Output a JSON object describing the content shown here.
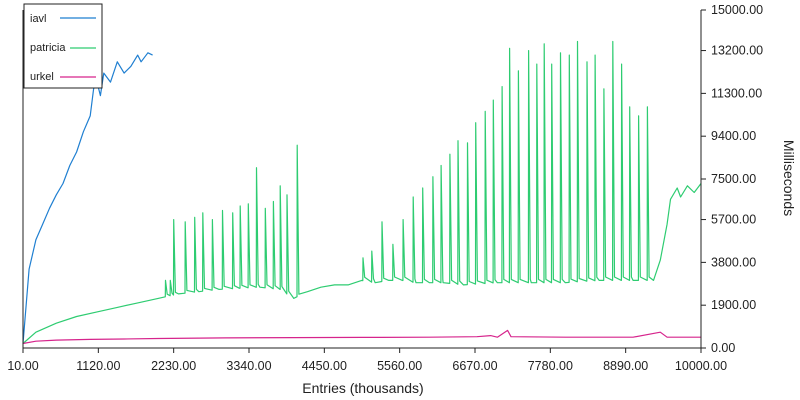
{
  "chart_data": {
    "type": "line",
    "xlabel": "Entries (thousands)",
    "ylabel": "Milliseconds",
    "xlim": [
      10,
      10000
    ],
    "ylim": [
      0,
      15000
    ],
    "x_ticks": [
      "10.00",
      "1120.00",
      "2230.00",
      "3340.00",
      "4450.00",
      "5560.00",
      "6670.00",
      "7780.00",
      "8890.00",
      "10000.00"
    ],
    "y_ticks": [
      "0.00",
      "1900.00",
      "3800.00",
      "5700.00",
      "7500.00",
      "9400.00",
      "11300.00",
      "13200.00",
      "15000.00"
    ],
    "legend_position": "top-left",
    "grid": false,
    "series": [
      {
        "name": "iavl",
        "color": "#1f7fd1",
        "points": [
          [
            10,
            200
          ],
          [
            100,
            3500
          ],
          [
            200,
            4800
          ],
          [
            300,
            5500
          ],
          [
            400,
            6200
          ],
          [
            500,
            6800
          ],
          [
            600,
            7300
          ],
          [
            700,
            8100
          ],
          [
            800,
            8700
          ],
          [
            900,
            9600
          ],
          [
            1000,
            10300
          ],
          [
            1050,
            11500
          ],
          [
            1100,
            11800
          ],
          [
            1150,
            11200
          ],
          [
            1200,
            12200
          ],
          [
            1300,
            11800
          ],
          [
            1400,
            12700
          ],
          [
            1500,
            12200
          ],
          [
            1600,
            12500
          ],
          [
            1700,
            13000
          ],
          [
            1750,
            12700
          ],
          [
            1800,
            12900
          ],
          [
            1850,
            13100
          ],
          [
            1920,
            13000
          ]
        ]
      },
      {
        "name": "patricia",
        "color": "#2ecc71",
        "spikes": [
          [
            2110,
            3000
          ],
          [
            2180,
            3000
          ],
          [
            2230,
            5700
          ],
          [
            2400,
            5600
          ],
          [
            2540,
            5800
          ],
          [
            2660,
            6000
          ],
          [
            2800,
            5700
          ],
          [
            2950,
            6100
          ],
          [
            3100,
            6000
          ],
          [
            3210,
            6300
          ],
          [
            3330,
            6400
          ],
          [
            3450,
            8000
          ],
          [
            3580,
            6200
          ],
          [
            3700,
            6500
          ],
          [
            3800,
            7200
          ],
          [
            3900,
            6800
          ],
          [
            4050,
            9000
          ],
          [
            5020,
            4000
          ],
          [
            5150,
            4300
          ],
          [
            5300,
            5600
          ],
          [
            5460,
            4600
          ],
          [
            5610,
            5700
          ],
          [
            5760,
            6700
          ],
          [
            5900,
            7100
          ],
          [
            6050,
            7600
          ],
          [
            6170,
            8100
          ],
          [
            6300,
            8600
          ],
          [
            6420,
            9200
          ],
          [
            6560,
            9100
          ],
          [
            6680,
            10000
          ],
          [
            6820,
            10500
          ],
          [
            6940,
            11000
          ],
          [
            7070,
            11600
          ],
          [
            7180,
            13300
          ],
          [
            7310,
            12300
          ],
          [
            7460,
            13200
          ],
          [
            7580,
            12600
          ],
          [
            7690,
            13500
          ],
          [
            7800,
            12600
          ],
          [
            7930,
            13100
          ],
          [
            8060,
            13000
          ],
          [
            8180,
            13600
          ],
          [
            8320,
            12700
          ],
          [
            8440,
            13000
          ],
          [
            8570,
            11500
          ],
          [
            8700,
            13600
          ],
          [
            8830,
            12600
          ],
          [
            8950,
            10700
          ],
          [
            9080,
            10300
          ],
          [
            9210,
            10700
          ]
        ],
        "points": [
          [
            10,
            200
          ],
          [
            200,
            700
          ],
          [
            500,
            1100
          ],
          [
            800,
            1400
          ],
          [
            1100,
            1600
          ],
          [
            1400,
            1800
          ],
          [
            1700,
            2000
          ],
          [
            2000,
            2200
          ],
          [
            2300,
            2400
          ],
          [
            2600,
            2500
          ],
          [
            2900,
            2600
          ],
          [
            3200,
            2650
          ],
          [
            3500,
            2700
          ],
          [
            3800,
            2600
          ],
          [
            4000,
            2200
          ],
          [
            4200,
            2500
          ],
          [
            4400,
            2700
          ],
          [
            4600,
            2800
          ],
          [
            4800,
            2800
          ],
          [
            5000,
            3000
          ],
          [
            5200,
            2900
          ],
          [
            5400,
            3000
          ],
          [
            5600,
            3000
          ],
          [
            5800,
            2900
          ],
          [
            6000,
            2900
          ],
          [
            6200,
            2900
          ],
          [
            6500,
            2800
          ],
          [
            7000,
            2900
          ],
          [
            7500,
            2900
          ],
          [
            8000,
            2900
          ],
          [
            8500,
            3000
          ],
          [
            9000,
            3000
          ],
          [
            9300,
            3000
          ],
          [
            9400,
            3900
          ],
          [
            9500,
            5500
          ],
          [
            9550,
            6600
          ],
          [
            9650,
            7100
          ],
          [
            9700,
            6700
          ],
          [
            9800,
            7200
          ],
          [
            9900,
            6900
          ],
          [
            10000,
            7300
          ]
        ]
      },
      {
        "name": "urkel",
        "color": "#d6248c",
        "points": [
          [
            10,
            200
          ],
          [
            200,
            300
          ],
          [
            500,
            350
          ],
          [
            1000,
            380
          ],
          [
            1500,
            400
          ],
          [
            2000,
            420
          ],
          [
            3000,
            450
          ],
          [
            4000,
            460
          ],
          [
            5000,
            470
          ],
          [
            6000,
            480
          ],
          [
            6700,
            500
          ],
          [
            6900,
            550
          ],
          [
            7000,
            480
          ],
          [
            7150,
            780
          ],
          [
            7200,
            500
          ],
          [
            8000,
            480
          ],
          [
            9000,
            480
          ],
          [
            9400,
            700
          ],
          [
            9500,
            480
          ],
          [
            10000,
            480
          ]
        ]
      }
    ]
  }
}
